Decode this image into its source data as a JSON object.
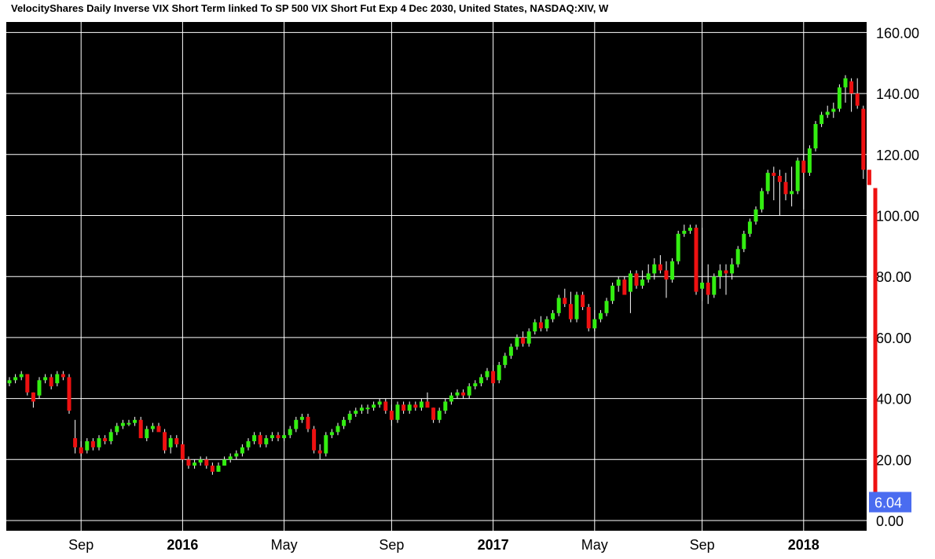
{
  "title": "VelocityShares Daily Inverse VIX Short Term linked To SP 500 VIX Short Fut Exp 4 Dec 2030, United States, NASDAQ:XIV, W",
  "colors": {
    "up": "#33ee11",
    "down": "#ee1111",
    "background": "#000000",
    "grid": "#ffffff",
    "last_badge": "#4a6cf0"
  },
  "chart_data": {
    "type": "candlestick",
    "interval": "W",
    "ylim": [
      -3,
      160
    ],
    "y_ticks": [
      {
        "value": 160,
        "label": "160.00"
      },
      {
        "value": 140,
        "label": "140.00"
      },
      {
        "value": 120,
        "label": "120.00"
      },
      {
        "value": 100,
        "label": "100.00"
      },
      {
        "value": 80,
        "label": "80.00"
      },
      {
        "value": 60,
        "label": "60.00"
      },
      {
        "value": 40,
        "label": "40.00"
      },
      {
        "value": 20,
        "label": "20.00"
      },
      {
        "value": 0,
        "label": "0.00"
      }
    ],
    "x_ticks": [
      {
        "label": "Sep",
        "bar": 12,
        "bold": false
      },
      {
        "label": "2016",
        "bar": 29,
        "bold": true
      },
      {
        "label": "May",
        "bar": 46,
        "bold": false
      },
      {
        "label": "Sep",
        "bar": 64,
        "bold": false
      },
      {
        "label": "2017",
        "bar": 81,
        "bold": true
      },
      {
        "label": "May",
        "bar": 98,
        "bold": false
      },
      {
        "label": "Sep",
        "bar": 116,
        "bold": false
      },
      {
        "label": "2018",
        "bar": 133,
        "bold": true
      }
    ],
    "last_price": {
      "value": 6.04,
      "label": "6.04"
    },
    "candles": [
      [
        45,
        47,
        44,
        46
      ],
      [
        46,
        48,
        45,
        47
      ],
      [
        47,
        49,
        46,
        48
      ],
      [
        48,
        48,
        41,
        42
      ],
      [
        42,
        42,
        37,
        39
      ],
      [
        41,
        47,
        40,
        46
      ],
      [
        46,
        48,
        45,
        47
      ],
      [
        47,
        48,
        43,
        44
      ],
      [
        45,
        49,
        44,
        48
      ],
      [
        48,
        49,
        46,
        47
      ],
      [
        47,
        48,
        35,
        36
      ],
      [
        27,
        33,
        22,
        24
      ],
      [
        24,
        26,
        21,
        22
      ],
      [
        23,
        27,
        22,
        26
      ],
      [
        26,
        27,
        23,
        24
      ],
      [
        24,
        28,
        23,
        27
      ],
      [
        27,
        28,
        25,
        26
      ],
      [
        26,
        30,
        25,
        29
      ],
      [
        29,
        32,
        28,
        31
      ],
      [
        31,
        33,
        30,
        32
      ],
      [
        32,
        33,
        31,
        32
      ],
      [
        32,
        34,
        31,
        33
      ],
      [
        33,
        34,
        28,
        27
      ],
      [
        27,
        31,
        26,
        30
      ],
      [
        30,
        32,
        29,
        31
      ],
      [
        31,
        32,
        30,
        29
      ],
      [
        29,
        30,
        22,
        23
      ],
      [
        24,
        28,
        22,
        27
      ],
      [
        27,
        28,
        24,
        25
      ],
      [
        25,
        26,
        19,
        20
      ],
      [
        20,
        21,
        17,
        18
      ],
      [
        18,
        20,
        17,
        19
      ],
      [
        19,
        21,
        18,
        20
      ],
      [
        20,
        21,
        17,
        18
      ],
      [
        18,
        19,
        15,
        16
      ],
      [
        16,
        19,
        16,
        18
      ],
      [
        18,
        21,
        18,
        20
      ],
      [
        20,
        22,
        19,
        21
      ],
      [
        21,
        23,
        20,
        22
      ],
      [
        22,
        25,
        21,
        24
      ],
      [
        24,
        27,
        23,
        26
      ],
      [
        26,
        29,
        25,
        28
      ],
      [
        28,
        29,
        24,
        25
      ],
      [
        25,
        28,
        24,
        27
      ],
      [
        27,
        29,
        26,
        28
      ],
      [
        28,
        29,
        26,
        27
      ],
      [
        27,
        29,
        26,
        28
      ],
      [
        28,
        31,
        27,
        30
      ],
      [
        30,
        34,
        29,
        33
      ],
      [
        33,
        35,
        32,
        34
      ],
      [
        34,
        35,
        29,
        30
      ],
      [
        30,
        31,
        22,
        23
      ],
      [
        23,
        25,
        20,
        22
      ],
      [
        22,
        29,
        21,
        28
      ],
      [
        28,
        30,
        27,
        29
      ],
      [
        29,
        32,
        28,
        31
      ],
      [
        31,
        34,
        30,
        33
      ],
      [
        33,
        36,
        32,
        35
      ],
      [
        35,
        37,
        34,
        36
      ],
      [
        36,
        38,
        35,
        37
      ],
      [
        37,
        38,
        35,
        37
      ],
      [
        37,
        39,
        36,
        38
      ],
      [
        38,
        40,
        37,
        39
      ],
      [
        39,
        40,
        35,
        36
      ],
      [
        36,
        38,
        31,
        33
      ],
      [
        33,
        39,
        32,
        38
      ],
      [
        38,
        39,
        35,
        36
      ],
      [
        36,
        39,
        35,
        38
      ],
      [
        38,
        39,
        36,
        37
      ],
      [
        37,
        40,
        36,
        39
      ],
      [
        39,
        42,
        38,
        37
      ],
      [
        37,
        37,
        32,
        33
      ],
      [
        33,
        37,
        32,
        36
      ],
      [
        36,
        40,
        35,
        39
      ],
      [
        39,
        42,
        38,
        41
      ],
      [
        41,
        43,
        40,
        42
      ],
      [
        42,
        43,
        40,
        41
      ],
      [
        41,
        45,
        40,
        44
      ],
      [
        44,
        46,
        43,
        45
      ],
      [
        45,
        48,
        44,
        47
      ],
      [
        47,
        50,
        46,
        49
      ],
      [
        49,
        51,
        44,
        45
      ],
      [
        46,
        52,
        45,
        51
      ],
      [
        51,
        55,
        50,
        54
      ],
      [
        54,
        58,
        53,
        57
      ],
      [
        57,
        61,
        56,
        60
      ],
      [
        60,
        62,
        57,
        58
      ],
      [
        58,
        63,
        57,
        62
      ],
      [
        62,
        66,
        61,
        65
      ],
      [
        65,
        67,
        62,
        63
      ],
      [
        63,
        67,
        62,
        66
      ],
      [
        66,
        69,
        65,
        68
      ],
      [
        68,
        74,
        67,
        73
      ],
      [
        73,
        76,
        70,
        71
      ],
      [
        71,
        75,
        65,
        66
      ],
      [
        66,
        75,
        65,
        74
      ],
      [
        74,
        75,
        69,
        70
      ],
      [
        70,
        71,
        62,
        63
      ],
      [
        63,
        69,
        62,
        66
      ],
      [
        66,
        69,
        65,
        68
      ],
      [
        68,
        73,
        67,
        72
      ],
      [
        72,
        78,
        71,
        77
      ],
      [
        77,
        80,
        75,
        79
      ],
      [
        79,
        80,
        74,
        74
      ],
      [
        75,
        82,
        68,
        81
      ],
      [
        81,
        82,
        76,
        77
      ],
      [
        77,
        82,
        76,
        79
      ],
      [
        79,
        84,
        78,
        81
      ],
      [
        81,
        86,
        79,
        84
      ],
      [
        84,
        87,
        81,
        82
      ],
      [
        82,
        85,
        73,
        79
      ],
      [
        79,
        86,
        78,
        85
      ],
      [
        85,
        95,
        84,
        94
      ],
      [
        94,
        97,
        93,
        95
      ],
      [
        95,
        97,
        94,
        96
      ],
      [
        96,
        97,
        74,
        75
      ],
      [
        76,
        96,
        72,
        78
      ],
      [
        78,
        84,
        71,
        74
      ],
      [
        74,
        81,
        73,
        80
      ],
      [
        80,
        84,
        76,
        82
      ],
      [
        82,
        84,
        74,
        81
      ],
      [
        81,
        86,
        79,
        84
      ],
      [
        84,
        90,
        83,
        89
      ],
      [
        89,
        95,
        88,
        94
      ],
      [
        94,
        99,
        93,
        98
      ],
      [
        98,
        103,
        97,
        102
      ],
      [
        102,
        109,
        101,
        108
      ],
      [
        108,
        115,
        107,
        114
      ],
      [
        114,
        116,
        105,
        113
      ],
      [
        113,
        115,
        100,
        111
      ],
      [
        111,
        114,
        105,
        107
      ],
      [
        107,
        116,
        103,
        108
      ],
      [
        108,
        119,
        107,
        118
      ],
      [
        118,
        120,
        102,
        114
      ],
      [
        114,
        123,
        113,
        122
      ],
      [
        122,
        131,
        121,
        130
      ],
      [
        130,
        134,
        129,
        133
      ],
      [
        133,
        136,
        132,
        134
      ],
      [
        134,
        137,
        132,
        135
      ],
      [
        135,
        143,
        134,
        142
      ],
      [
        142,
        146,
        137,
        145
      ],
      [
        144,
        145,
        134,
        140
      ],
      [
        140,
        145,
        135,
        136
      ],
      [
        135,
        136,
        112,
        115
      ],
      [
        115,
        118,
        109,
        110
      ],
      [
        109,
        109,
        5,
        6
      ],
      [
        6,
        7,
        5,
        6.04
      ]
    ]
  }
}
